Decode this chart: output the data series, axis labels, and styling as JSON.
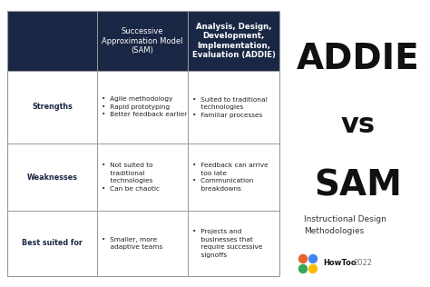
{
  "bg_color": "#ffffff",
  "header_bg": "#1a2744",
  "header_text_color": "#ffffff",
  "row_label_color": "#1a2744",
  "cell_text_color": "#222222",
  "grid_color": "#999999",
  "col1_header": "Successive\nApproximation Model\n(SAM)",
  "col2_header": "Analysis, Design,\nDevelopment,\nImplementation,\nEvaluation (ADDIE)",
  "addie_text": "ADDIE",
  "vs_text": "vs",
  "sam_text": "SAM",
  "subtitle_right": "Instructional Design\nMethodologies",
  "watermark_text": " HowToo  2022",
  "logo_colors": [
    "#e8622c",
    "#4285f4",
    "#34a853",
    "#fbbc05"
  ],
  "rows": [
    {
      "label": "Strengths",
      "col1": "•  Agile methodology\n•  Rapid prototyping\n•  Better feedback earlier",
      "col2": "•  Suited to traditional\n    technologies\n•  Familiar processes"
    },
    {
      "label": "Weaknesses",
      "col1": "•  Not suited to\n    traditional\n    technologies\n•  Can be chaotic",
      "col2": "•  Feedback can arrive\n    too late\n•  Communication\n    breakdowns"
    },
    {
      "label": "Best suited for",
      "col1": "•  Smaller, more\n    adaptive teams",
      "col2": "•  Projects and\n    businesses that\n    require successive\n    signoffs"
    }
  ]
}
